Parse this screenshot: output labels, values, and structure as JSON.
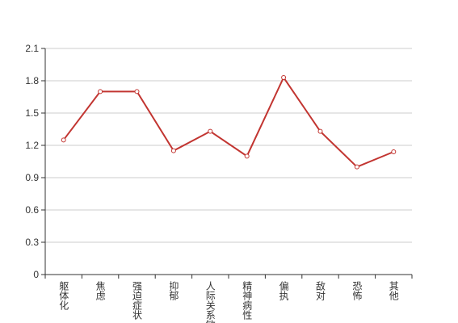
{
  "chart_data": {
    "type": "line",
    "categories": [
      "躯体化",
      "焦虑",
      "强迫症状",
      "抑郁",
      "人际关系敏感",
      "精神病性",
      "偏执",
      "敌对",
      "恐怖",
      "其他"
    ],
    "series": [
      {
        "name": "",
        "color": "#c23531",
        "values": [
          1.25,
          1.7,
          1.7,
          1.15,
          1.33,
          1.1,
          1.83,
          1.33,
          1.0,
          1.14
        ]
      }
    ],
    "ylim": [
      0,
      2.1
    ],
    "yticks": [
      0,
      0.3,
      0.6,
      0.9,
      1.2,
      1.5,
      1.8,
      2.1
    ],
    "grid": true
  }
}
